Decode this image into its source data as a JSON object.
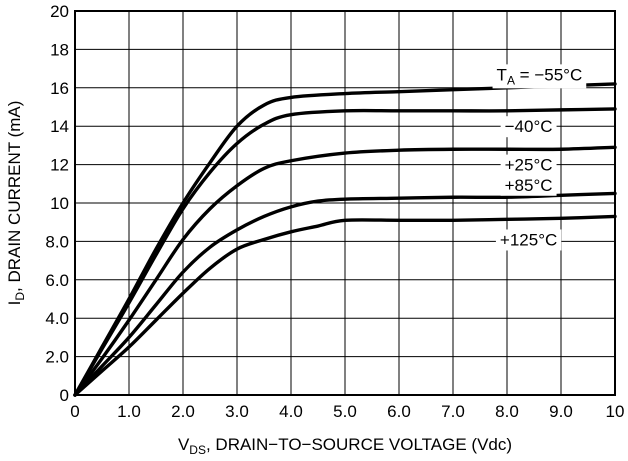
{
  "chart_data": {
    "type": "line",
    "xlabel": {
      "main": "V",
      "sub": "DS",
      "rest": ", DRAIN−TO−SOURCE VOLTAGE (Vdc)"
    },
    "ylabel": {
      "main": "I",
      "sub": "D",
      "rest": ", DRAIN CURRENT (mA)"
    },
    "xlim": [
      0,
      10
    ],
    "ylim": [
      0,
      20
    ],
    "x_ticks": [
      {
        "value": 0,
        "label": "0"
      },
      {
        "value": 1,
        "label": "1.0"
      },
      {
        "value": 2,
        "label": "2.0"
      },
      {
        "value": 3,
        "label": "3.0"
      },
      {
        "value": 4,
        "label": "4.0"
      },
      {
        "value": 5,
        "label": "5.0"
      },
      {
        "value": 6,
        "label": "6.0"
      },
      {
        "value": 7,
        "label": "7.0"
      },
      {
        "value": 8,
        "label": "8.0"
      },
      {
        "value": 9,
        "label": "9.0"
      },
      {
        "value": 10,
        "label": "10"
      }
    ],
    "y_ticks": [
      {
        "value": 0,
        "label": "0"
      },
      {
        "value": 2,
        "label": "2.0"
      },
      {
        "value": 4,
        "label": "4.0"
      },
      {
        "value": 6,
        "label": "6.0"
      },
      {
        "value": 8,
        "label": "8.0"
      },
      {
        "value": 10,
        "label": "10"
      },
      {
        "value": 12,
        "label": "12"
      },
      {
        "value": 14,
        "label": "14"
      },
      {
        "value": 16,
        "label": "16"
      },
      {
        "value": 18,
        "label": "18"
      },
      {
        "value": 20,
        "label": "20"
      }
    ],
    "grid": true,
    "series": [
      {
        "name": "T_A = −55°C",
        "label": {
          "main": "T",
          "sub": "A",
          "rest": " = −55°C",
          "x": 8.6,
          "y": 16.7
        },
        "x": [
          0,
          0.5,
          1,
          1.5,
          2,
          2.5,
          3,
          3.5,
          4,
          5,
          6,
          7,
          8,
          9,
          10
        ],
        "y": [
          0,
          2.5,
          5,
          7.6,
          10,
          12.1,
          14,
          15.1,
          15.5,
          15.7,
          15.8,
          15.9,
          16,
          16.1,
          16.2
        ]
      },
      {
        "name": "−40°C",
        "label": {
          "main": "−40°C",
          "sub": "",
          "rest": "",
          "x": 8.4,
          "y": 14.0
        },
        "x": [
          0,
          0.5,
          1,
          1.5,
          2,
          2.5,
          3,
          3.5,
          4,
          5,
          6,
          7,
          8,
          9,
          10
        ],
        "y": [
          0,
          2.4,
          4.8,
          7.3,
          9.7,
          11.6,
          13.1,
          14.1,
          14.6,
          14.8,
          14.8,
          14.8,
          14.8,
          14.85,
          14.9
        ]
      },
      {
        "name": "+25°C",
        "label": {
          "main": "+25°C",
          "sub": "",
          "rest": "",
          "x": 8.4,
          "y": 12.0
        },
        "x": [
          0,
          0.5,
          1,
          1.5,
          2,
          2.5,
          3,
          3.5,
          4,
          5,
          6,
          7,
          8,
          9,
          10
        ],
        "y": [
          0,
          1.9,
          3.9,
          6.0,
          8.1,
          9.7,
          10.9,
          11.8,
          12.2,
          12.6,
          12.75,
          12.8,
          12.8,
          12.8,
          12.9
        ]
      },
      {
        "name": "+85°C",
        "label": {
          "main": "+85°C",
          "sub": "",
          "rest": "",
          "x": 8.4,
          "y": 10.95
        },
        "x": [
          0,
          0.5,
          1,
          1.5,
          2,
          2.5,
          3,
          3.5,
          4,
          4.5,
          5,
          6,
          7,
          8,
          9,
          10
        ],
        "y": [
          0,
          1.5,
          3.0,
          4.7,
          6.4,
          7.7,
          8.6,
          9.3,
          9.8,
          10.1,
          10.2,
          10.25,
          10.3,
          10.3,
          10.4,
          10.5
        ]
      },
      {
        "name": "+125°C",
        "label": {
          "main": "+125°C",
          "sub": "",
          "rest": "",
          "x": 8.4,
          "y": 8.1
        },
        "x": [
          0,
          0.5,
          1,
          1.5,
          2,
          2.5,
          3,
          3.5,
          4,
          4.5,
          5,
          6,
          7,
          8,
          9,
          10
        ],
        "y": [
          0,
          1.25,
          2.5,
          3.9,
          5.3,
          6.6,
          7.6,
          8.1,
          8.5,
          8.8,
          9.1,
          9.1,
          9.1,
          9.15,
          9.2,
          9.3
        ]
      }
    ]
  }
}
